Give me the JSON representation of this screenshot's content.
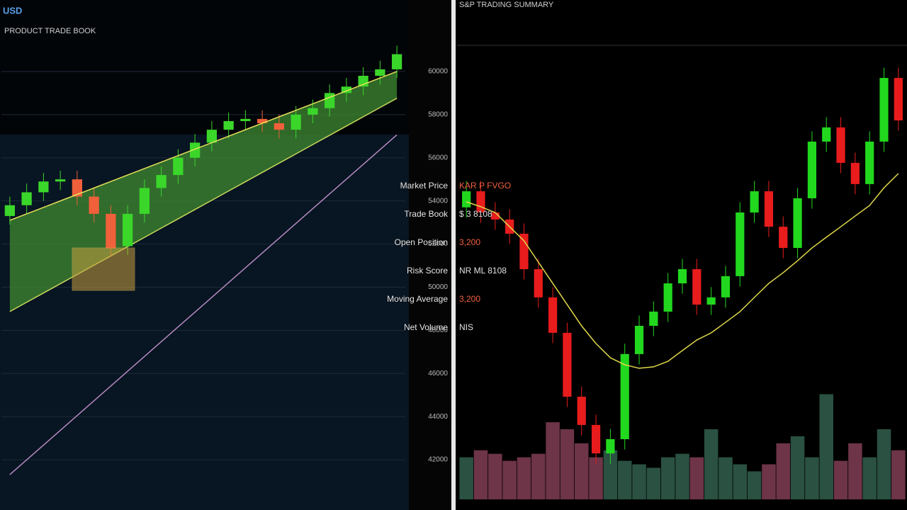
{
  "chart_data": [
    {
      "type": "candlestick",
      "title": "USD",
      "subtitle": "PRODUCT TRADE BOOK",
      "open": [
        53300,
        53800,
        54400,
        54900,
        55000,
        54200,
        53400,
        51900,
        53400,
        54600,
        55200,
        56000,
        56700,
        57300,
        57700,
        57800,
        57600,
        57300,
        58000,
        58300,
        59000,
        59300,
        59800,
        60100
      ],
      "high": [
        54200,
        54800,
        55300,
        55400,
        55400,
        54600,
        53800,
        53800,
        55000,
        55600,
        56400,
        57100,
        57700,
        58100,
        58200,
        58200,
        58000,
        58400,
        58700,
        59400,
        59700,
        60200,
        60500,
        61200
      ],
      "low": [
        52900,
        53400,
        54000,
        54500,
        53800,
        53000,
        51400,
        51500,
        53000,
        54200,
        54800,
        55600,
        56300,
        56900,
        57300,
        57200,
        56900,
        56900,
        57600,
        57900,
        58600,
        58900,
        59400,
        59700
      ],
      "close": [
        53800,
        54400,
        54900,
        55000,
        54200,
        53400,
        51800,
        53400,
        54600,
        55200,
        56000,
        56700,
        57300,
        57700,
        57800,
        57600,
        57300,
        58000,
        58300,
        59000,
        59300,
        59800,
        60100,
        60800
      ],
      "ma": [
        53100,
        53400,
        53700,
        54000,
        54300,
        54600,
        54900,
        55200,
        55500,
        55800,
        56100,
        56400,
        56700,
        57000,
        57300,
        57600,
        57900,
        58200,
        58500,
        58800,
        59100,
        59400,
        59700,
        60000
      ],
      "lower": [
        48870,
        49300,
        49730,
        50160,
        50590,
        51020,
        51450,
        51880,
        52310,
        52740,
        53170,
        53600,
        54030,
        54460,
        54890,
        55320,
        55750,
        56180,
        56610,
        57040,
        57470,
        57900,
        58330,
        58760
      ],
      "long": [
        41310,
        41995,
        42680,
        43365,
        44050,
        44735,
        45420,
        46105,
        46790,
        47475,
        48160,
        48845,
        49530,
        50215,
        50900,
        51585,
        52270,
        52955,
        53640,
        54325,
        55010,
        55695,
        56380,
        57065
      ],
      "ylim": [
        40000,
        62000
      ],
      "yticks": [
        42000,
        44000,
        46000,
        48000,
        50000,
        52000,
        54000,
        56000,
        58000,
        60000
      ],
      "colors": {
        "up": "#3bd62a",
        "down": "#f0603a",
        "ma": "#e8e05a",
        "lower": "#c8d85a",
        "long": "#b58ac0",
        "area": "#3f8a32"
      }
    },
    {
      "type": "candlestick",
      "title": "S&P TRADING SUMMARY",
      "open": [
        54000,
        54780,
        53750,
        53410,
        52720,
        51000,
        49630,
        47910,
        44810,
        43440,
        42060,
        42750,
        46880,
        48250,
        48940,
        50310,
        51000,
        49280,
        49630,
        50660,
        53750,
        54780,
        53060,
        52030,
        54440,
        57190,
        57880,
        56160,
        55130,
        57190,
        60280
      ],
      "high": [
        55280,
        55280,
        54250,
        53910,
        53220,
        51500,
        50130,
        48410,
        45310,
        43940,
        43250,
        47380,
        48750,
        49440,
        50810,
        51500,
        51500,
        50130,
        51160,
        54250,
        55280,
        55280,
        53560,
        54940,
        57690,
        58380,
        58380,
        56660,
        57690,
        60780,
        60780
      ],
      "low": [
        53500,
        53250,
        52910,
        52220,
        50500,
        49130,
        47410,
        44310,
        42940,
        41560,
        41560,
        42250,
        46380,
        47750,
        48440,
        49810,
        48780,
        48780,
        49130,
        50160,
        53250,
        52560,
        51530,
        51530,
        53940,
        56690,
        55660,
        54630,
        54630,
        56690,
        57720
      ],
      "close": [
        54780,
        53750,
        53410,
        52720,
        51000,
        49630,
        47910,
        44810,
        43440,
        42060,
        42750,
        46880,
        48250,
        48940,
        50310,
        51000,
        49280,
        49630,
        50660,
        53750,
        54780,
        53060,
        52030,
        54440,
        57190,
        57880,
        56160,
        55130,
        57190,
        60280,
        58220
      ],
      "ma": [
        54270,
        54030,
        53750,
        53060,
        52380,
        51340,
        50310,
        49280,
        48250,
        47390,
        46700,
        46360,
        46190,
        46260,
        46530,
        47050,
        47560,
        47910,
        48420,
        48940,
        49630,
        50310,
        50830,
        51410,
        52030,
        52550,
        53060,
        53580,
        54090,
        54950,
        55640
      ],
      "volume": [
        72,
        84,
        78,
        66,
        72,
        78,
        132,
        120,
        96,
        72,
        84,
        66,
        60,
        54,
        72,
        78,
        72,
        120,
        72,
        60,
        48,
        60,
        96,
        108,
        72,
        180,
        66,
        96,
        72,
        120,
        84
      ],
      "ylim": [
        40000,
        62000
      ],
      "volume_lim": [
        0,
        200
      ],
      "colors": {
        "up": "#22d81e",
        "down": "#e81c1c",
        "ma": "#e0d84a",
        "vol_up": "#2f5a48",
        "vol_down": "#7a3a50"
      }
    }
  ],
  "overlay": {
    "rows": [
      {
        "label": "Market Price",
        "value": "KAR P FVGO"
      },
      {
        "label": "Trade Book",
        "value": "$ 3 8108"
      },
      {
        "label": "Open Position",
        "value": "3,200"
      },
      {
        "label": "Risk Score",
        "value": "NR ML 8108"
      },
      {
        "label": "Moving Average",
        "value": "3,200"
      },
      {
        "label": "Net Volume",
        "value": "NIS"
      }
    ]
  }
}
